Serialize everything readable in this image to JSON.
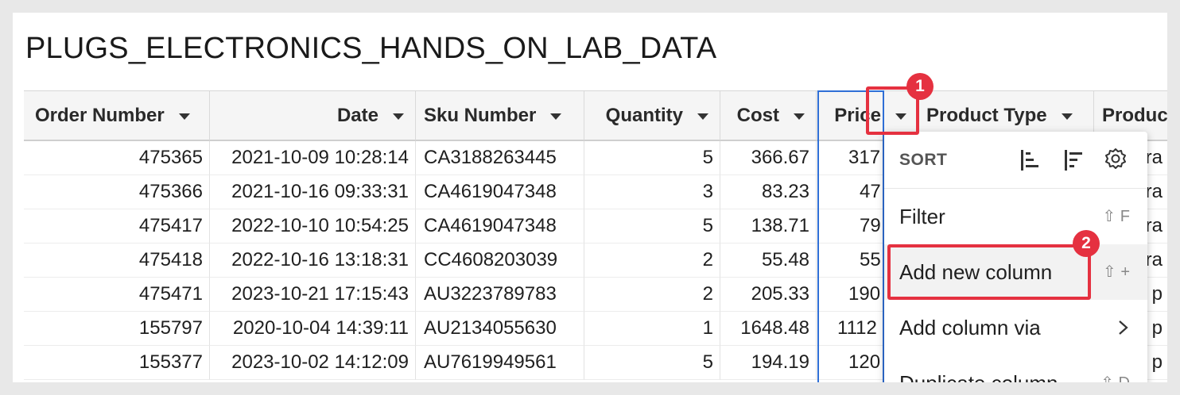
{
  "title": "PLUGS_ELECTRONICS_HANDS_ON_LAB_DATA",
  "columns": [
    {
      "label": "Order Number"
    },
    {
      "label": "Date"
    },
    {
      "label": "Sku Number"
    },
    {
      "label": "Quantity"
    },
    {
      "label": "Cost"
    },
    {
      "label": "Price"
    },
    {
      "label": "Product Type"
    },
    {
      "label": "Produc"
    }
  ],
  "rows": [
    {
      "order": "475365",
      "date": "2021-10-09 10:28:14",
      "sku": "CA3188263445",
      "qty": "5",
      "cost": "366.67",
      "price": "317",
      "ptype": "",
      "prod": "era"
    },
    {
      "order": "475366",
      "date": "2021-10-16 09:33:31",
      "sku": "CA4619047348",
      "qty": "3",
      "cost": "83.23",
      "price": "47",
      "ptype": "",
      "prod": "era"
    },
    {
      "order": "475417",
      "date": "2022-10-10 10:54:25",
      "sku": "CA4619047348",
      "qty": "5",
      "cost": "138.71",
      "price": "79",
      "ptype": "",
      "prod": "era"
    },
    {
      "order": "475418",
      "date": "2022-10-16 13:18:31",
      "sku": "CC4608203039",
      "qty": "2",
      "cost": "55.48",
      "price": "55",
      "ptype": "",
      "prod": "era"
    },
    {
      "order": "475471",
      "date": "2023-10-21 17:15:43",
      "sku": "AU3223789783",
      "qty": "2",
      "cost": "205.33",
      "price": "190",
      "ptype": "",
      "prod": "p"
    },
    {
      "order": "155797",
      "date": "2020-10-04 14:39:11",
      "sku": "AU2134055630",
      "qty": "1",
      "cost": "1648.48",
      "price": "1112",
      "ptype": "",
      "prod": "p"
    },
    {
      "order": "155377",
      "date": "2023-10-02 14:12:09",
      "sku": "AU7619949561",
      "qty": "5",
      "cost": "194.19",
      "price": "120",
      "ptype": "",
      "prod": "p"
    }
  ],
  "menu": {
    "sort_label": "SORT",
    "items": [
      {
        "label": "Filter",
        "shortcut": "⇧ F"
      },
      {
        "label": "Add new column",
        "shortcut": "⇧ +"
      },
      {
        "label": "Add column via",
        "shortcut": ""
      },
      {
        "label": "Duplicate column",
        "shortcut": "⇧ D"
      }
    ]
  },
  "annotations": [
    {
      "number": "1"
    },
    {
      "number": "2"
    }
  ],
  "colors": {
    "accent_blue": "#2f6fd6",
    "annotation_red": "#e53140",
    "menu_highlight": "#f2f2f2"
  }
}
